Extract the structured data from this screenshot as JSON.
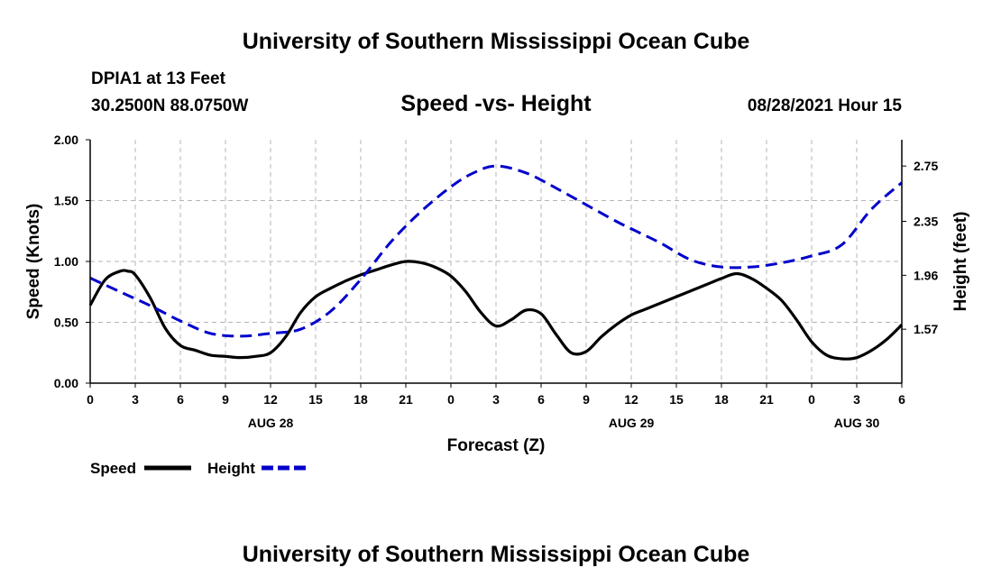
{
  "header": {
    "title_top": "University of Southern Mississippi Ocean Cube",
    "title_bottom": "University of Southern Mississippi Ocean Cube",
    "station": "DPIA1 at 13 Feet",
    "coords": "30.2500N  88.0750W",
    "subtitle": "Speed -vs- Height",
    "datetime": "08/28/2021 Hour 15"
  },
  "chart_data": {
    "type": "line",
    "title": "Speed -vs- Height",
    "xlabel": "Forecast (Z)",
    "ylabel": "Speed (Knots)",
    "y2label": "Height (feet)",
    "grid": true,
    "x_range": [
      0,
      54
    ],
    "x_ticks": [
      {
        "x": 0,
        "label": "0"
      },
      {
        "x": 3,
        "label": "3"
      },
      {
        "x": 6,
        "label": "6"
      },
      {
        "x": 9,
        "label": "9"
      },
      {
        "x": 12,
        "label": "12"
      },
      {
        "x": 15,
        "label": "15"
      },
      {
        "x": 18,
        "label": "18"
      },
      {
        "x": 21,
        "label": "21"
      },
      {
        "x": 24,
        "label": "0"
      },
      {
        "x": 27,
        "label": "3"
      },
      {
        "x": 30,
        "label": "6"
      },
      {
        "x": 33,
        "label": "9"
      },
      {
        "x": 36,
        "label": "12"
      },
      {
        "x": 39,
        "label": "15"
      },
      {
        "x": 42,
        "label": "18"
      },
      {
        "x": 45,
        "label": "21"
      },
      {
        "x": 48,
        "label": "0"
      },
      {
        "x": 51,
        "label": "3"
      },
      {
        "x": 54,
        "label": "6"
      }
    ],
    "date_labels": [
      {
        "x": 12,
        "label": "AUG 28"
      },
      {
        "x": 36,
        "label": "AUG 29"
      },
      {
        "x": 51,
        "label": "AUG 30"
      }
    ],
    "ylim": [
      0,
      2
    ],
    "y_ticks": [
      "0.00",
      "0.50",
      "1.00",
      "1.50",
      "2.00"
    ],
    "y2lim": [
      1.18,
      2.94
    ],
    "y2_ticks": [
      "1.57",
      "1.96",
      "2.35",
      "2.75"
    ],
    "series": [
      {
        "name": "Speed",
        "axis": "left",
        "color": "#000000",
        "style": "solid",
        "x": [
          0,
          1,
          2,
          2.5,
          3,
          4,
          5,
          6,
          7,
          8,
          9,
          10,
          11,
          12,
          13,
          14,
          15,
          16,
          17,
          18,
          19,
          20,
          21,
          22,
          23,
          24,
          25,
          26,
          27,
          28,
          29,
          30,
          31,
          32,
          33,
          34,
          35,
          36,
          37,
          38,
          39,
          40,
          41,
          42,
          43,
          44,
          45,
          46,
          47,
          48,
          49,
          50,
          51,
          52,
          53,
          54
        ],
        "values": [
          0.64,
          0.85,
          0.92,
          0.92,
          0.89,
          0.7,
          0.45,
          0.31,
          0.27,
          0.23,
          0.22,
          0.21,
          0.22,
          0.25,
          0.38,
          0.58,
          0.71,
          0.78,
          0.84,
          0.89,
          0.93,
          0.97,
          1.0,
          0.99,
          0.95,
          0.88,
          0.75,
          0.58,
          0.47,
          0.52,
          0.6,
          0.57,
          0.4,
          0.25,
          0.26,
          0.38,
          0.48,
          0.56,
          0.61,
          0.66,
          0.71,
          0.76,
          0.81,
          0.86,
          0.9,
          0.86,
          0.78,
          0.68,
          0.52,
          0.34,
          0.23,
          0.2,
          0.21,
          0.27,
          0.36,
          0.48
        ]
      },
      {
        "name": "Height",
        "axis": "right",
        "color": "#0000cc",
        "style": "dashed",
        "x": [
          0,
          2,
          4,
          6,
          8,
          10,
          12,
          14,
          16,
          18,
          20,
          22,
          24,
          25.5,
          27,
          29,
          31,
          33,
          35,
          36.5,
          38,
          40,
          42,
          44,
          46,
          48,
          50,
          52,
          54
        ],
        "values": [
          1.94,
          1.84,
          1.74,
          1.63,
          1.54,
          1.52,
          1.54,
          1.57,
          1.7,
          1.93,
          2.2,
          2.42,
          2.6,
          2.7,
          2.75,
          2.7,
          2.59,
          2.47,
          2.35,
          2.27,
          2.19,
          2.07,
          2.02,
          2.02,
          2.05,
          2.1,
          2.18,
          2.44,
          2.63
        ]
      }
    ],
    "legend": {
      "placement": "bottom-left",
      "entries": [
        "Speed",
        "Height"
      ]
    }
  }
}
